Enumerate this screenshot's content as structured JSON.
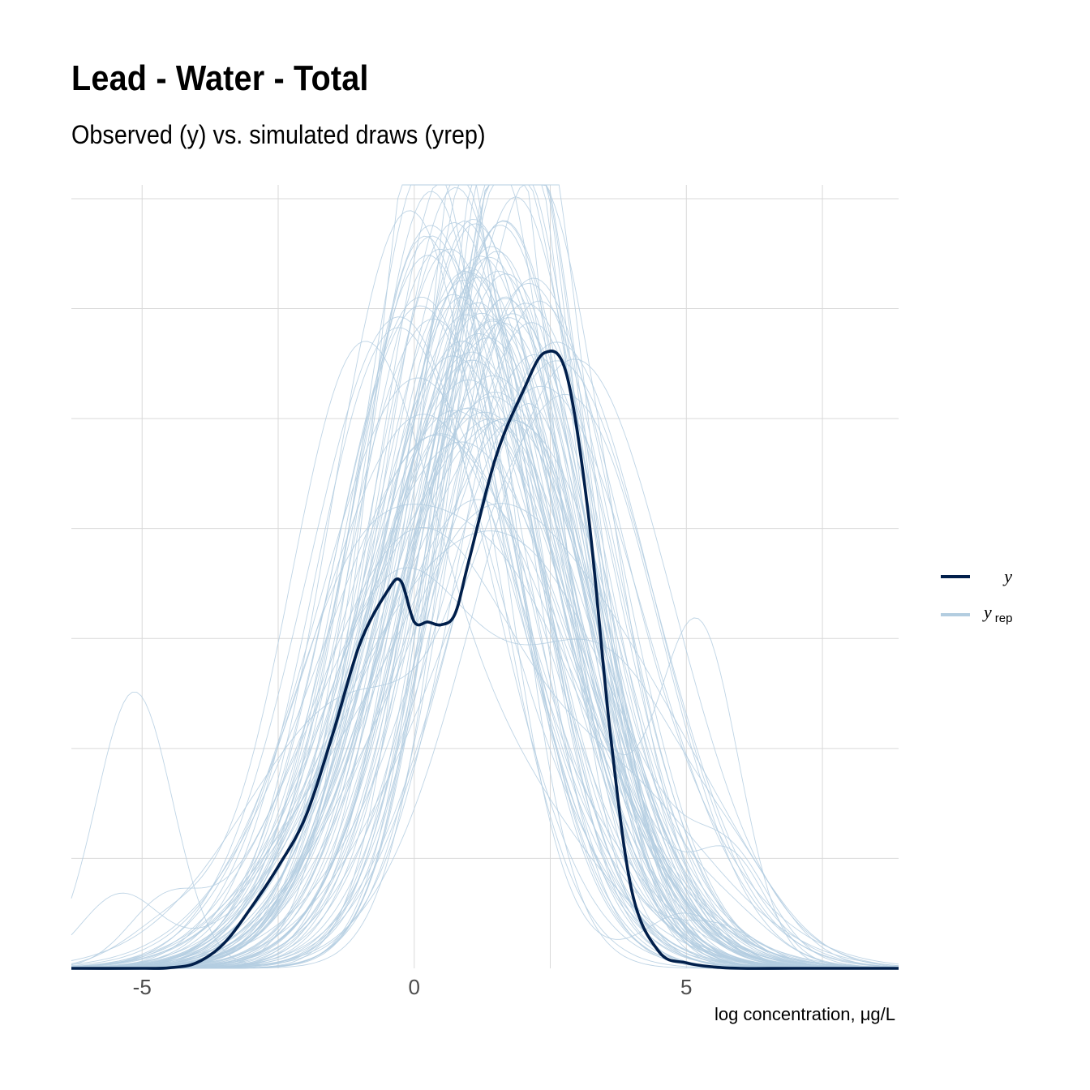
{
  "title": "Lead - Water - Total",
  "subtitle": "Observed (y) vs. simulated draws (yrep)",
  "chart_data": {
    "type": "line",
    "title": "Lead - Water - Total",
    "subtitle": "Observed (y) vs. simulated draws (yrep)",
    "xlabel": "log concentration, μg/L",
    "ylabel": "",
    "xlim": [
      -6.3,
      8.9
    ],
    "ylim": [
      0,
      0.285
    ],
    "x_ticks": [
      -5,
      0,
      5
    ],
    "x_tick_labels": [
      "-5",
      "0",
      "5"
    ],
    "grid": true,
    "legend_position": "right",
    "legend": [
      {
        "key": "y",
        "label": "y",
        "subscript": ""
      },
      {
        "key": "yrep",
        "label": "y",
        "subscript": "rep"
      }
    ],
    "colors": {
      "y": "#011f4b",
      "yrep": "#b3cde0"
    },
    "series": [
      {
        "name": "y",
        "x": [
          -6.3,
          -5,
          -4.5,
          -4,
          -3.5,
          -3,
          -2.5,
          -2,
          -1.5,
          -1,
          -0.5,
          -0.25,
          0,
          0.25,
          0.5,
          0.75,
          1,
          1.5,
          2,
          2.4,
          2.8,
          3.2,
          3.6,
          4,
          4.5,
          5,
          5.5,
          6,
          7,
          8.9
        ],
        "y": [
          0,
          0,
          0.0002,
          0.002,
          0.009,
          0.022,
          0.037,
          0.055,
          0.085,
          0.118,
          0.137,
          0.141,
          0.126,
          0.126,
          0.125,
          0.129,
          0.148,
          0.186,
          0.21,
          0.224,
          0.216,
          0.165,
          0.086,
          0.028,
          0.006,
          0.002,
          0.0005,
          0,
          0,
          0
        ]
      },
      {
        "name": "yrep",
        "draws": 100,
        "description_omitted": true
      }
    ]
  }
}
